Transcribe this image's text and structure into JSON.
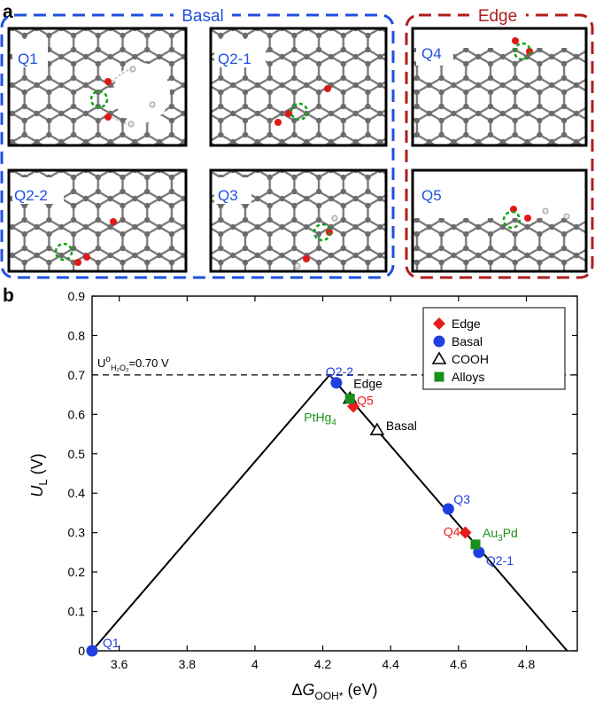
{
  "panel_a": {
    "letter": "a",
    "basal_title": "Basal",
    "edge_title": "Edge",
    "models": [
      {
        "label": "Q1"
      },
      {
        "label": "Q2-1"
      },
      {
        "label": "Q2-2"
      },
      {
        "label": "Q3"
      },
      {
        "label": "Q4"
      },
      {
        "label": "Q5"
      }
    ],
    "colors": {
      "basal": "#1f4fe0",
      "edge": "#b01c1c",
      "carbon": "#6b6b6b",
      "oxygen": "#e01818",
      "hydrogen": "#e8e8e8",
      "active_site": "#16a016"
    }
  },
  "panel_b": {
    "letter": "b",
    "equilibrium_label_base": "U",
    "equilibrium_label_sup": "o",
    "equilibrium_label_sub": "H₂O₂",
    "equilibrium_label_value": "=0.70 V",
    "ylabel_italic": "U",
    "ylabel_sub": "L",
    "ylabel_unit": " (V)",
    "xlabel_delta": "Δ",
    "xlabel_italic": "G",
    "xlabel_sub": "OOH*",
    "xlabel_unit": " (eV)"
  },
  "chart_data": {
    "type": "scatter",
    "xlabel": "ΔG_OOH* (eV)",
    "ylabel": "U_L (V)",
    "xlim": [
      3.52,
      4.95
    ],
    "ylim": [
      0,
      0.9
    ],
    "xticks": [
      "3.6",
      "3.8",
      "4",
      "4.2",
      "4.4",
      "4.6",
      "4.8"
    ],
    "xtick_values": [
      3.6,
      3.8,
      4.0,
      4.2,
      4.4,
      4.6,
      4.8
    ],
    "yticks": [
      "0",
      "0.1",
      "0.2",
      "0.3",
      "0.4",
      "0.5",
      "0.6",
      "0.7",
      "0.8",
      "0.9"
    ],
    "ytick_values": [
      0,
      0.1,
      0.2,
      0.3,
      0.4,
      0.5,
      0.6,
      0.7,
      0.8,
      0.9
    ],
    "volcano": [
      [
        3.52,
        0.0
      ],
      [
        4.22,
        0.7
      ],
      [
        4.92,
        0.0
      ]
    ],
    "equilibrium": 0.7,
    "legend_position": "top-right",
    "legend": [
      {
        "name": "Edge",
        "marker": "diamond",
        "color": "#e81c1c"
      },
      {
        "name": "Basal",
        "marker": "circle",
        "color": "#1f3fe0"
      },
      {
        "name": "COOH",
        "marker": "triangle-open",
        "color": "#000000"
      },
      {
        "name": "Alloys",
        "marker": "square",
        "color": "#1a8f1a"
      }
    ],
    "series": [
      {
        "name": "Basal",
        "marker": "circle",
        "color": "#1f3fe0",
        "points": [
          {
            "x": 3.52,
            "y": 0.0,
            "label": "Q1"
          },
          {
            "x": 4.24,
            "y": 0.68,
            "label": "Q2-2"
          },
          {
            "x": 4.57,
            "y": 0.36,
            "label": "Q3"
          },
          {
            "x": 4.66,
            "y": 0.25,
            "label": "Q2-1"
          }
        ]
      },
      {
        "name": "Edge",
        "marker": "diamond",
        "color": "#e81c1c",
        "points": [
          {
            "x": 4.29,
            "y": 0.62,
            "label": "Q5"
          },
          {
            "x": 4.62,
            "y": 0.3,
            "label": "Q4"
          }
        ]
      },
      {
        "name": "COOH",
        "marker": "triangle-open",
        "color": "#000000",
        "points": [
          {
            "x": 4.28,
            "y": 0.64,
            "label": "Edge"
          },
          {
            "x": 4.36,
            "y": 0.56,
            "label": "Basal"
          }
        ]
      },
      {
        "name": "Alloys",
        "marker": "square",
        "color": "#1a8f1a",
        "points": [
          {
            "x": 4.28,
            "y": 0.64,
            "label_base": "PtHg",
            "label_sub": "4"
          },
          {
            "x": 4.65,
            "y": 0.27,
            "label_base": "Au",
            "label_mid": "3",
            "label_end": "Pd"
          }
        ]
      }
    ]
  }
}
